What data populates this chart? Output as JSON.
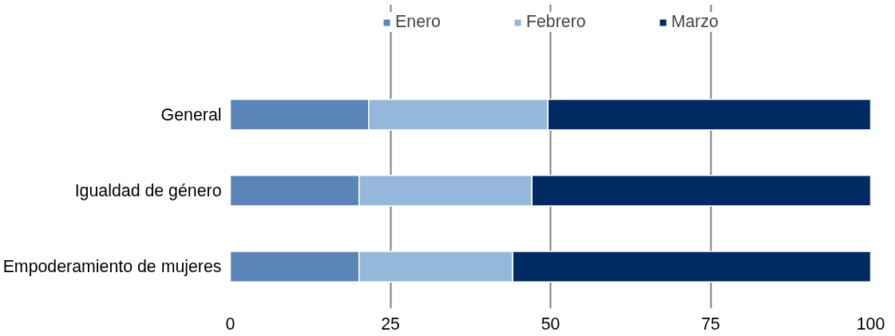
{
  "chart_data": {
    "type": "bar",
    "orientation": "horizontal",
    "stacked": true,
    "categories": [
      "General",
      "Igualdad de género",
      "Empoderamiento de mujeres"
    ],
    "series": [
      {
        "name": "Enero",
        "color": "#5b84b7",
        "values": [
          21.6,
          20.1,
          20.1
        ]
      },
      {
        "name": "Febrero",
        "color": "#95b8da",
        "values": [
          28.0,
          27.0,
          24.0
        ]
      },
      {
        "name": "Marzo",
        "color": "#002b62",
        "values": [
          50.4,
          52.9,
          55.9
        ]
      }
    ],
    "xlim": [
      0,
      100
    ],
    "xticks": [
      0,
      25,
      50,
      75,
      100
    ],
    "grid": "x",
    "legend": "top"
  }
}
